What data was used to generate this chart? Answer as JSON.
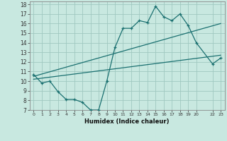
{
  "xlabel": "Humidex (Indice chaleur)",
  "bg_color": "#c8e8e0",
  "grid_color": "#a0c8c0",
  "line_color": "#1a7070",
  "xlim": [
    -0.5,
    23.5
  ],
  "ylim": [
    7,
    18.3
  ],
  "xtick_positions": [
    0,
    1,
    2,
    3,
    4,
    5,
    6,
    7,
    8,
    9,
    10,
    11,
    12,
    13,
    14,
    15,
    16,
    17,
    18,
    19,
    20,
    22,
    23
  ],
  "xtick_labels": [
    "0",
    "1",
    "2",
    "3",
    "4",
    "5",
    "6",
    "7",
    "8",
    "9",
    "10",
    "11",
    "12",
    "13",
    "14",
    "15",
    "16",
    "17",
    "18",
    "19",
    "20",
    "22",
    "23"
  ],
  "yticks": [
    7,
    8,
    9,
    10,
    11,
    12,
    13,
    14,
    15,
    16,
    17,
    18
  ],
  "line1_x": [
    0,
    1,
    2,
    3,
    4,
    5,
    6,
    7,
    8,
    9,
    10,
    11,
    12,
    13,
    14,
    15,
    16,
    17,
    18,
    19,
    20,
    22,
    23
  ],
  "line1_y": [
    10.7,
    9.8,
    10.0,
    8.9,
    8.1,
    8.1,
    7.8,
    7.0,
    7.0,
    10.0,
    13.5,
    15.5,
    15.5,
    16.3,
    16.1,
    17.8,
    16.7,
    16.3,
    17.0,
    15.8,
    14.0,
    11.8,
    12.4
  ],
  "line2_x": [
    0,
    23
  ],
  "line2_y": [
    10.5,
    16.0
  ],
  "line3_x": [
    0,
    23
  ],
  "line3_y": [
    10.2,
    12.7
  ]
}
